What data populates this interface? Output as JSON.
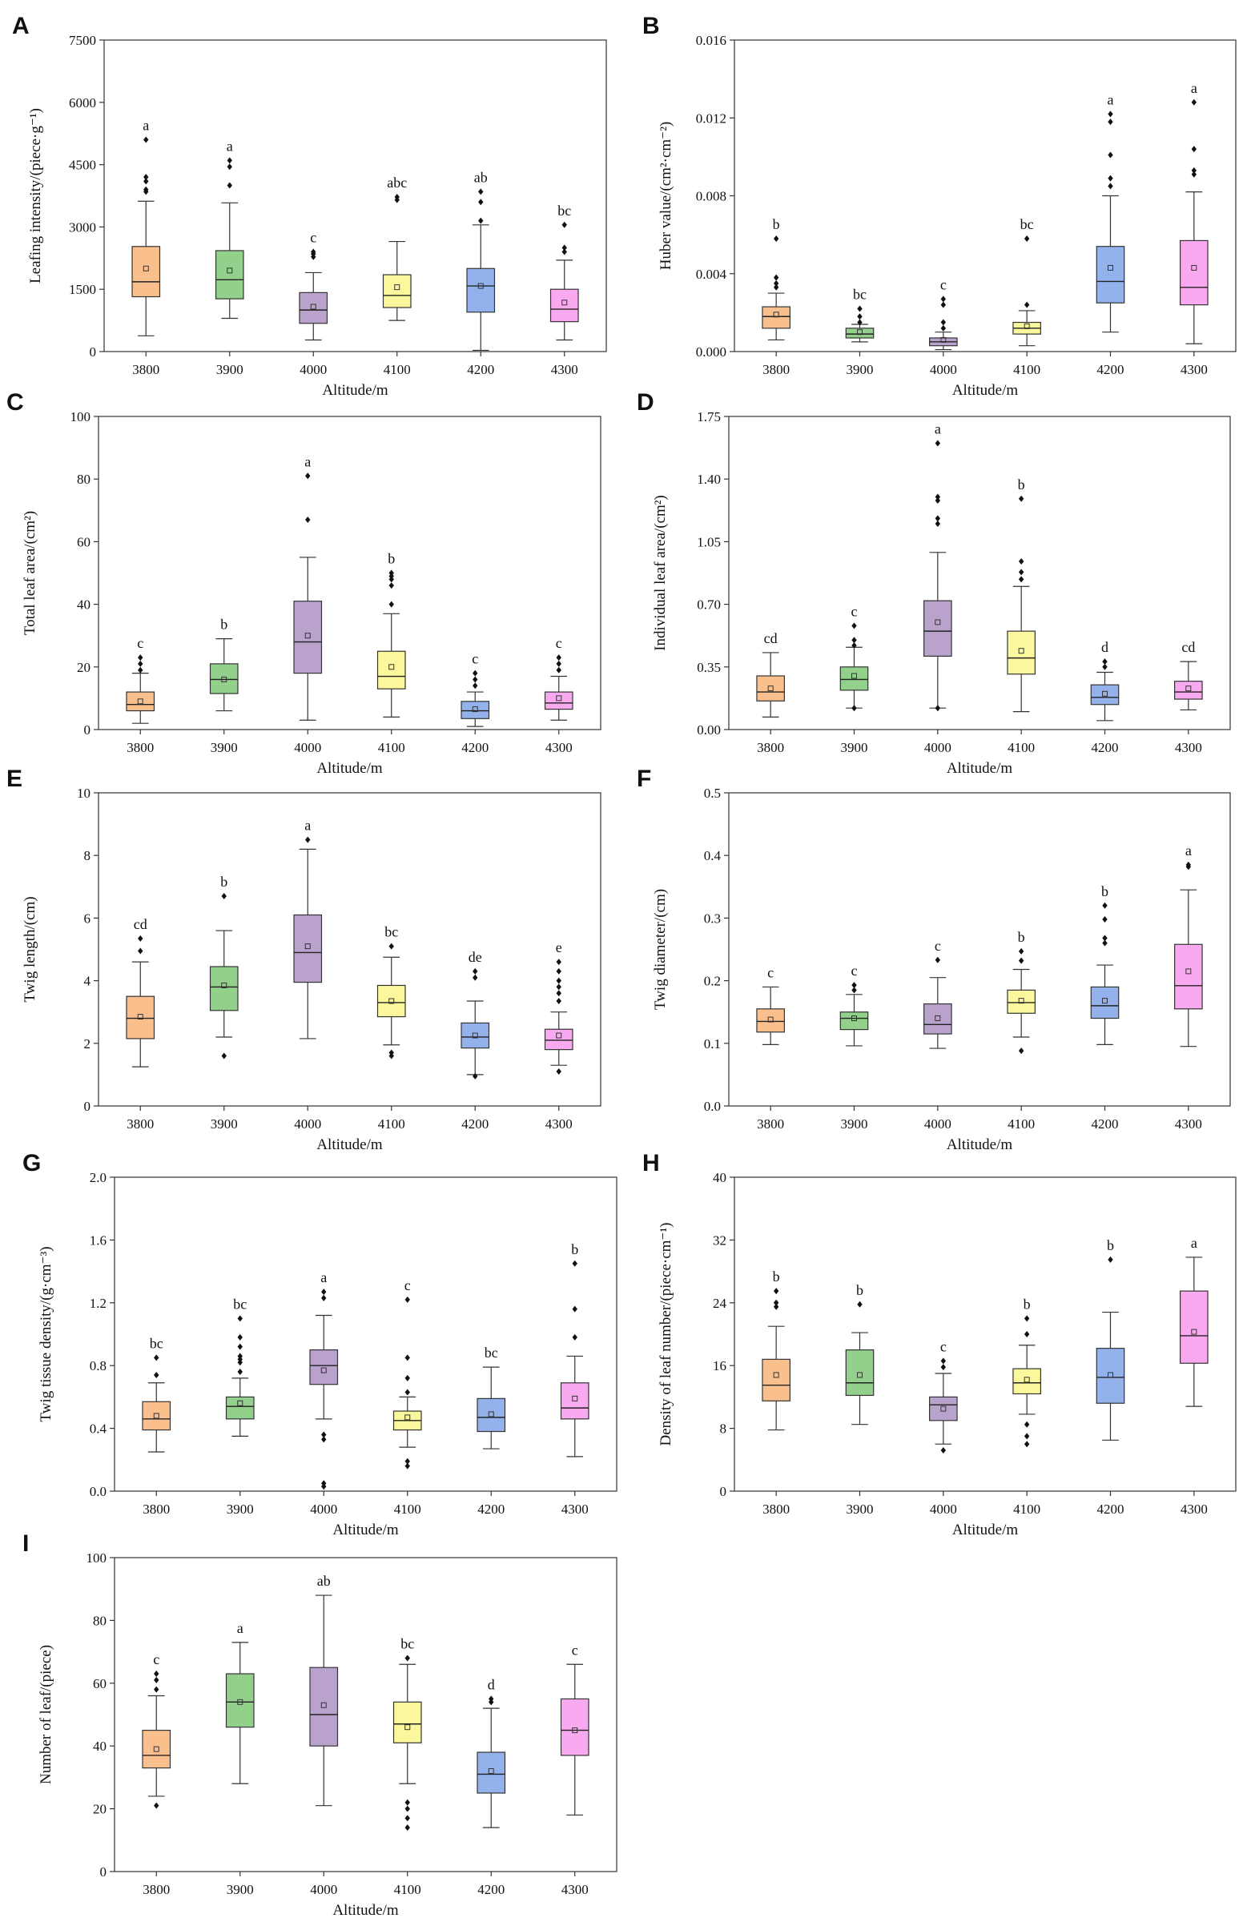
{
  "figure": {
    "altitudes": [
      "3800",
      "3900",
      "4000",
      "4100",
      "4200",
      "4300"
    ],
    "colors": [
      "#f9c08e",
      "#93d08b",
      "#b9a3cc",
      "#fbf79c",
      "#93b2ec",
      "#f9a9f0"
    ]
  },
  "chart_data": [
    {
      "type": "box",
      "panel": "A",
      "xlabel": "Altitude/m",
      "ylabel": "Leafing intensity/(piece·g⁻¹)",
      "ylim": [
        0,
        7500
      ],
      "yticks": [
        "0",
        "1500",
        "3000",
        "4500",
        "6000",
        "7500"
      ],
      "categories": [
        "3800",
        "3900",
        "4000",
        "4100",
        "4200",
        "4300"
      ],
      "boxes": [
        {
          "min": 380,
          "q1": 1320,
          "median": 1680,
          "q3": 2530,
          "max": 3620,
          "mean": 2000,
          "outliers": [
            3850,
            3900,
            4100,
            4200,
            5100
          ],
          "sig": "a"
        },
        {
          "min": 800,
          "q1": 1270,
          "median": 1730,
          "q3": 2430,
          "max": 3580,
          "mean": 1950,
          "outliers": [
            4000,
            4450,
            4600
          ],
          "sig": "a"
        },
        {
          "min": 280,
          "q1": 680,
          "median": 1000,
          "q3": 1420,
          "max": 1900,
          "mean": 1080,
          "outliers": [
            2280,
            2350,
            2400
          ],
          "sig": "c"
        },
        {
          "min": 750,
          "q1": 1060,
          "median": 1350,
          "q3": 1850,
          "max": 2650,
          "mean": 1550,
          "outliers": [
            3650,
            3720
          ],
          "sig": "abc"
        },
        {
          "min": 30,
          "q1": 950,
          "median": 1580,
          "q3": 2000,
          "max": 3050,
          "mean": 1580,
          "outliers": [
            3150,
            3600,
            3850
          ],
          "sig": "ab"
        },
        {
          "min": 280,
          "q1": 720,
          "median": 1020,
          "q3": 1500,
          "max": 2200,
          "mean": 1180,
          "outliers": [
            2400,
            2500,
            3050
          ],
          "sig": "bc"
        }
      ]
    },
    {
      "type": "box",
      "panel": "B",
      "xlabel": "Altitude/m",
      "ylabel": "Huber value/(cm²·cm⁻²)",
      "ylim": [
        0,
        0.016
      ],
      "yticks": [
        "0.000",
        "0.004",
        "0.008",
        "0.012",
        "0.016"
      ],
      "categories": [
        "3800",
        "3900",
        "4000",
        "4100",
        "4200",
        "4300"
      ],
      "boxes": [
        {
          "min": 0.0006,
          "q1": 0.0012,
          "median": 0.0018,
          "q3": 0.0023,
          "max": 0.003,
          "mean": 0.0019,
          "outliers": [
            0.0033,
            0.0035,
            0.0038,
            0.0058
          ],
          "sig": "b"
        },
        {
          "min": 0.0005,
          "q1": 0.0007,
          "median": 0.0009,
          "q3": 0.0012,
          "max": 0.0014,
          "mean": 0.001,
          "outliers": [
            0.0015,
            0.0018,
            0.0022
          ],
          "sig": "bc"
        },
        {
          "min": 0.0001,
          "q1": 0.0003,
          "median": 0.0005,
          "q3": 0.0007,
          "max": 0.001,
          "mean": 0.0006,
          "outliers": [
            0.0012,
            0.0015,
            0.0024,
            0.0027
          ],
          "sig": "c"
        },
        {
          "min": 0.0003,
          "q1": 0.0009,
          "median": 0.0012,
          "q3": 0.0015,
          "max": 0.0021,
          "mean": 0.0013,
          "outliers": [
            0.0024,
            0.0058
          ],
          "sig": "bc"
        },
        {
          "min": 0.001,
          "q1": 0.0025,
          "median": 0.0036,
          "q3": 0.0054,
          "max": 0.008,
          "mean": 0.0043,
          "outliers": [
            0.0085,
            0.0089,
            0.0101,
            0.0118,
            0.0122
          ],
          "sig": "a"
        },
        {
          "min": 0.0004,
          "q1": 0.0024,
          "median": 0.0033,
          "q3": 0.0057,
          "max": 0.0082,
          "mean": 0.0043,
          "outliers": [
            0.0091,
            0.0093,
            0.0104,
            0.0128
          ],
          "sig": "a"
        }
      ]
    },
    {
      "type": "box",
      "panel": "C",
      "xlabel": "Altitude/m",
      "ylabel": "Total leaf area/(cm²)",
      "ylim": [
        0,
        100
      ],
      "yticks": [
        "0",
        "20",
        "40",
        "60",
        "80",
        "100"
      ],
      "categories": [
        "3800",
        "3900",
        "4000",
        "4100",
        "4200",
        "4300"
      ],
      "boxes": [
        {
          "min": 2,
          "q1": 6,
          "median": 8,
          "q3": 12,
          "max": 18,
          "mean": 9,
          "outliers": [
            19,
            21,
            23
          ],
          "sig": "c"
        },
        {
          "min": 6,
          "q1": 11.5,
          "median": 16,
          "q3": 21,
          "max": 29,
          "mean": 16,
          "outliers": [],
          "sig": "b"
        },
        {
          "min": 3,
          "q1": 18,
          "median": 28,
          "q3": 41,
          "max": 55,
          "mean": 30,
          "outliers": [
            67,
            81
          ],
          "sig": "a"
        },
        {
          "min": 4,
          "q1": 13,
          "median": 17,
          "q3": 25,
          "max": 37,
          "mean": 20,
          "outliers": [
            40,
            46,
            48,
            49,
            50
          ],
          "sig": "b"
        },
        {
          "min": 1,
          "q1": 3.5,
          "median": 6,
          "q3": 9,
          "max": 12,
          "mean": 6.5,
          "outliers": [
            14,
            16,
            18
          ],
          "sig": "c"
        },
        {
          "min": 3,
          "q1": 6.5,
          "median": 8.5,
          "q3": 12,
          "max": 17,
          "mean": 10,
          "outliers": [
            19,
            21,
            23
          ],
          "sig": "c"
        }
      ]
    },
    {
      "type": "box",
      "panel": "D",
      "xlabel": "Altitude/m",
      "ylabel": "Individual leaf area/(cm²)",
      "ylim": [
        0,
        1.75
      ],
      "yticks": [
        "0.00",
        "0.35",
        "0.70",
        "1.05",
        "1.40",
        "1.75"
      ],
      "categories": [
        "3800",
        "3900",
        "4000",
        "4100",
        "4200",
        "4300"
      ],
      "boxes": [
        {
          "min": 0.07,
          "q1": 0.16,
          "median": 0.21,
          "q3": 0.3,
          "max": 0.43,
          "mean": 0.23,
          "outliers": [],
          "sig": "cd"
        },
        {
          "min": 0.12,
          "q1": 0.22,
          "median": 0.28,
          "q3": 0.35,
          "max": 0.46,
          "mean": 0.3,
          "outliers": [
            0.12,
            0.47,
            0.5,
            0.58
          ],
          "sig": "c"
        },
        {
          "min": 0.12,
          "q1": 0.41,
          "median": 0.55,
          "q3": 0.72,
          "max": 0.99,
          "mean": 0.6,
          "outliers": [
            0.12,
            1.15,
            1.18,
            1.28,
            1.3,
            1.6
          ],
          "sig": "a"
        },
        {
          "min": 0.1,
          "q1": 0.31,
          "median": 0.4,
          "q3": 0.55,
          "max": 0.8,
          "mean": 0.44,
          "outliers": [
            0.84,
            0.88,
            0.94,
            1.29
          ],
          "sig": "b"
        },
        {
          "min": 0.05,
          "q1": 0.14,
          "median": 0.18,
          "q3": 0.25,
          "max": 0.32,
          "mean": 0.2,
          "outliers": [
            0.35,
            0.38
          ],
          "sig": "d"
        },
        {
          "min": 0.11,
          "q1": 0.17,
          "median": 0.21,
          "q3": 0.27,
          "max": 0.38,
          "mean": 0.23,
          "outliers": [],
          "sig": "cd"
        }
      ]
    },
    {
      "type": "box",
      "panel": "E",
      "xlabel": "Altitude/m",
      "ylabel": "Twig length/(cm)",
      "ylim": [
        0,
        10
      ],
      "yticks": [
        "0",
        "2",
        "4",
        "6",
        "8",
        "10"
      ],
      "categories": [
        "3800",
        "3900",
        "4000",
        "4100",
        "4200",
        "4300"
      ],
      "boxes": [
        {
          "min": 1.25,
          "q1": 2.15,
          "median": 2.8,
          "q3": 3.5,
          "max": 4.6,
          "mean": 2.85,
          "outliers": [
            4.95,
            5.35
          ],
          "sig": "cd"
        },
        {
          "min": 2.2,
          "q1": 3.05,
          "median": 3.8,
          "q3": 4.45,
          "max": 5.6,
          "mean": 3.85,
          "outliers": [
            1.6,
            6.7
          ],
          "sig": "b"
        },
        {
          "min": 2.15,
          "q1": 3.95,
          "median": 4.9,
          "q3": 6.1,
          "max": 8.2,
          "mean": 5.1,
          "outliers": [
            8.5
          ],
          "sig": "a"
        },
        {
          "min": 1.95,
          "q1": 2.85,
          "median": 3.3,
          "q3": 3.85,
          "max": 4.75,
          "mean": 3.35,
          "outliers": [
            1.6,
            1.7,
            5.1
          ],
          "sig": "bc"
        },
        {
          "min": 1.0,
          "q1": 1.85,
          "median": 2.2,
          "q3": 2.65,
          "max": 3.35,
          "mean": 2.25,
          "outliers": [
            0.95,
            4.1,
            4.3
          ],
          "sig": "de"
        },
        {
          "min": 1.3,
          "q1": 1.8,
          "median": 2.1,
          "q3": 2.45,
          "max": 3.0,
          "mean": 2.25,
          "outliers": [
            1.1,
            3.35,
            3.6,
            3.8,
            4.0,
            4.3,
            4.6
          ],
          "sig": "e"
        }
      ]
    },
    {
      "type": "box",
      "panel": "F",
      "xlabel": "Altitude/m",
      "ylabel": "Twig diameter/(cm)",
      "ylim": [
        0,
        0.5
      ],
      "yticks": [
        "0.0",
        "0.1",
        "0.2",
        "0.3",
        "0.4",
        "0.5"
      ],
      "categories": [
        "3800",
        "3900",
        "4000",
        "4100",
        "4200",
        "4300"
      ],
      "boxes": [
        {
          "min": 0.098,
          "q1": 0.118,
          "median": 0.135,
          "q3": 0.155,
          "max": 0.19,
          "mean": 0.138,
          "outliers": [],
          "sig": "c"
        },
        {
          "min": 0.096,
          "q1": 0.122,
          "median": 0.14,
          "q3": 0.15,
          "max": 0.178,
          "mean": 0.14,
          "outliers": [
            0.185,
            0.193
          ],
          "sig": "c"
        },
        {
          "min": 0.092,
          "q1": 0.115,
          "median": 0.13,
          "q3": 0.163,
          "max": 0.205,
          "mean": 0.14,
          "outliers": [
            0.233
          ],
          "sig": "c"
        },
        {
          "min": 0.11,
          "q1": 0.148,
          "median": 0.165,
          "q3": 0.185,
          "max": 0.218,
          "mean": 0.168,
          "outliers": [
            0.088,
            0.232,
            0.247
          ],
          "sig": "b"
        },
        {
          "min": 0.098,
          "q1": 0.14,
          "median": 0.16,
          "q3": 0.19,
          "max": 0.225,
          "mean": 0.168,
          "outliers": [
            0.26,
            0.268,
            0.298,
            0.32
          ],
          "sig": "b"
        },
        {
          "min": 0.095,
          "q1": 0.155,
          "median": 0.192,
          "q3": 0.258,
          "max": 0.345,
          "mean": 0.215,
          "outliers": [
            0.382,
            0.385
          ],
          "sig": "a"
        }
      ]
    },
    {
      "type": "box",
      "panel": "G",
      "xlabel": "Altitude/m",
      "ylabel": "Twig tissue density/(g·cm⁻³)",
      "ylim": [
        0,
        2.0
      ],
      "yticks": [
        "0.0",
        "0.4",
        "0.8",
        "1.2",
        "1.6",
        "2.0"
      ],
      "categories": [
        "3800",
        "3900",
        "4000",
        "4100",
        "4200",
        "4300"
      ],
      "boxes": [
        {
          "min": 0.25,
          "q1": 0.39,
          "median": 0.46,
          "q3": 0.57,
          "max": 0.69,
          "mean": 0.48,
          "outliers": [
            0.74,
            0.85
          ],
          "sig": "bc"
        },
        {
          "min": 0.35,
          "q1": 0.46,
          "median": 0.54,
          "q3": 0.6,
          "max": 0.72,
          "mean": 0.56,
          "outliers": [
            0.76,
            0.82,
            0.84,
            0.86,
            0.92,
            0.98,
            1.1
          ],
          "sig": "bc"
        },
        {
          "min": 0.46,
          "q1": 0.68,
          "median": 0.8,
          "q3": 0.9,
          "max": 1.12,
          "mean": 0.77,
          "outliers": [
            0.03,
            0.05,
            0.33,
            0.36,
            1.23,
            1.27
          ],
          "sig": "a"
        },
        {
          "min": 0.28,
          "q1": 0.39,
          "median": 0.45,
          "q3": 0.51,
          "max": 0.6,
          "mean": 0.47,
          "outliers": [
            0.16,
            0.19,
            0.63,
            0.72,
            0.85,
            1.22
          ],
          "sig": "c"
        },
        {
          "min": 0.27,
          "q1": 0.38,
          "median": 0.47,
          "q3": 0.59,
          "max": 0.79,
          "mean": 0.49,
          "outliers": [],
          "sig": "bc"
        },
        {
          "min": 0.22,
          "q1": 0.46,
          "median": 0.53,
          "q3": 0.69,
          "max": 0.86,
          "mean": 0.59,
          "outliers": [
            0.98,
            1.16,
            1.45
          ],
          "sig": "b"
        }
      ]
    },
    {
      "type": "box",
      "panel": "H",
      "xlabel": "Altitude/m",
      "ylabel": "Density of leaf number/(piece·cm⁻¹)",
      "ylim": [
        0,
        40
      ],
      "yticks": [
        "0",
        "8",
        "16",
        "24",
        "32",
        "40"
      ],
      "categories": [
        "3800",
        "3900",
        "4000",
        "4100",
        "4200",
        "4300"
      ],
      "boxes": [
        {
          "min": 7.8,
          "q1": 11.5,
          "median": 13.5,
          "q3": 16.8,
          "max": 21,
          "mean": 14.8,
          "outliers": [
            23.5,
            24,
            25.5
          ],
          "sig": "b"
        },
        {
          "min": 8.5,
          "q1": 12.2,
          "median": 13.8,
          "q3": 18,
          "max": 20.2,
          "mean": 14.8,
          "outliers": [
            23.8
          ],
          "sig": "b"
        },
        {
          "min": 6,
          "q1": 9,
          "median": 11,
          "q3": 12,
          "max": 15,
          "mean": 10.5,
          "outliers": [
            5.2,
            15.8,
            16.6
          ],
          "sig": "c"
        },
        {
          "min": 9.8,
          "q1": 12.4,
          "median": 13.8,
          "q3": 15.6,
          "max": 18.6,
          "mean": 14.2,
          "outliers": [
            6,
            7,
            8.5,
            20,
            22
          ],
          "sig": "b"
        },
        {
          "min": 6.5,
          "q1": 11.2,
          "median": 14.5,
          "q3": 18.2,
          "max": 22.8,
          "mean": 14.8,
          "outliers": [
            29.5
          ],
          "sig": "b"
        },
        {
          "min": 10.8,
          "q1": 16.3,
          "median": 19.8,
          "q3": 25.5,
          "max": 29.8,
          "mean": 20.3,
          "outliers": [],
          "sig": "a"
        }
      ]
    },
    {
      "type": "box",
      "panel": "I",
      "xlabel": "Altitude/m",
      "ylabel": "Number of leaf/(piece)",
      "ylim": [
        0,
        100
      ],
      "yticks": [
        "0",
        "20",
        "40",
        "60",
        "80",
        "100"
      ],
      "categories": [
        "3800",
        "3900",
        "4000",
        "4100",
        "4200",
        "4300"
      ],
      "boxes": [
        {
          "min": 24,
          "q1": 33,
          "median": 37,
          "q3": 45,
          "max": 56,
          "mean": 39,
          "outliers": [
            21,
            58,
            61,
            63
          ],
          "sig": "c"
        },
        {
          "min": 28,
          "q1": 46,
          "median": 54,
          "q3": 63,
          "max": 73,
          "mean": 54,
          "outliers": [],
          "sig": "a"
        },
        {
          "min": 21,
          "q1": 40,
          "median": 50,
          "q3": 65,
          "max": 88,
          "mean": 53,
          "outliers": [],
          "sig": "ab"
        },
        {
          "min": 28,
          "q1": 41,
          "median": 47,
          "q3": 54,
          "max": 66,
          "mean": 46,
          "outliers": [
            14,
            17,
            20,
            22,
            68
          ],
          "sig": "bc"
        },
        {
          "min": 14,
          "q1": 25,
          "median": 31,
          "q3": 38,
          "max": 52,
          "mean": 32,
          "outliers": [
            54,
            55
          ],
          "sig": "d"
        },
        {
          "min": 18,
          "q1": 37,
          "median": 45,
          "q3": 55,
          "max": 66,
          "mean": 45,
          "outliers": [],
          "sig": "c"
        }
      ]
    }
  ]
}
